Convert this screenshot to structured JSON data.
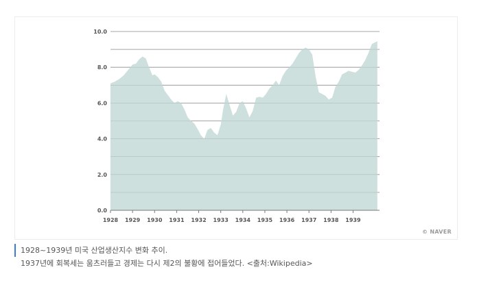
{
  "chart_data": {
    "type": "area",
    "x_ticks": [
      "1928",
      "1929",
      "1930",
      "1931",
      "1932",
      "1933",
      "1934",
      "1935",
      "1936",
      "1937",
      "1938",
      "1939"
    ],
    "y_ticks": [
      "0.0",
      "2.0",
      "4.0",
      "6.0",
      "8.0",
      "10.0"
    ],
    "ylim": [
      0,
      10
    ],
    "xlim": [
      1928,
      1940.2
    ],
    "grid": true,
    "fill_color": "#cde0de",
    "x": [
      1928.0,
      1928.2,
      1928.4,
      1928.6,
      1928.8,
      1929.0,
      1929.15,
      1929.3,
      1929.45,
      1929.6,
      1929.75,
      1929.9,
      1930.0,
      1930.15,
      1930.3,
      1930.45,
      1930.6,
      1930.75,
      1930.9,
      1931.05,
      1931.2,
      1931.35,
      1931.5,
      1931.65,
      1931.8,
      1931.95,
      1932.1,
      1932.25,
      1932.4,
      1932.55,
      1932.7,
      1932.85,
      1933.0,
      1933.1,
      1933.25,
      1933.4,
      1933.55,
      1933.7,
      1933.85,
      1934.0,
      1934.15,
      1934.3,
      1934.45,
      1934.6,
      1934.75,
      1934.9,
      1935.05,
      1935.2,
      1935.35,
      1935.5,
      1935.65,
      1935.8,
      1935.95,
      1936.1,
      1936.25,
      1936.4,
      1936.55,
      1936.7,
      1936.85,
      1937.0,
      1937.15,
      1937.3,
      1937.45,
      1937.6,
      1937.75,
      1937.9,
      1938.05,
      1938.2,
      1938.35,
      1938.5,
      1938.65,
      1938.8,
      1938.95,
      1939.1,
      1939.25,
      1939.4,
      1939.55,
      1939.7,
      1939.85,
      1940.0,
      1940.1
    ],
    "values": [
      7.1,
      7.2,
      7.35,
      7.55,
      7.85,
      8.15,
      8.2,
      8.45,
      8.6,
      8.5,
      8.0,
      7.55,
      7.6,
      7.45,
      7.2,
      6.7,
      6.45,
      6.2,
      6.0,
      6.1,
      6.0,
      5.65,
      5.2,
      5.0,
      4.85,
      4.55,
      4.2,
      4.0,
      4.5,
      4.6,
      4.35,
      4.2,
      4.8,
      5.6,
      6.5,
      5.9,
      5.3,
      5.5,
      6.0,
      6.1,
      5.7,
      5.2,
      5.55,
      6.3,
      6.35,
      6.3,
      6.5,
      6.8,
      7.0,
      7.25,
      7.0,
      7.5,
      7.8,
      8.0,
      8.2,
      8.5,
      8.8,
      9.0,
      9.1,
      9.0,
      8.7,
      7.5,
      6.6,
      6.5,
      6.4,
      6.2,
      6.3,
      6.9,
      7.2,
      7.6,
      7.7,
      7.8,
      7.75,
      7.7,
      7.85,
      8.1,
      8.4,
      8.8,
      9.3,
      9.4,
      9.45
    ]
  },
  "watermark": "© NAVER",
  "caption": {
    "line1": "1928~1939년 미국 산업생산지수 변화 추이.",
    "line2": "1937년에 회복세는 움츠러들고 경제는 다시 제2의 불황에 접어들었다. <출처:Wikipedia>"
  }
}
